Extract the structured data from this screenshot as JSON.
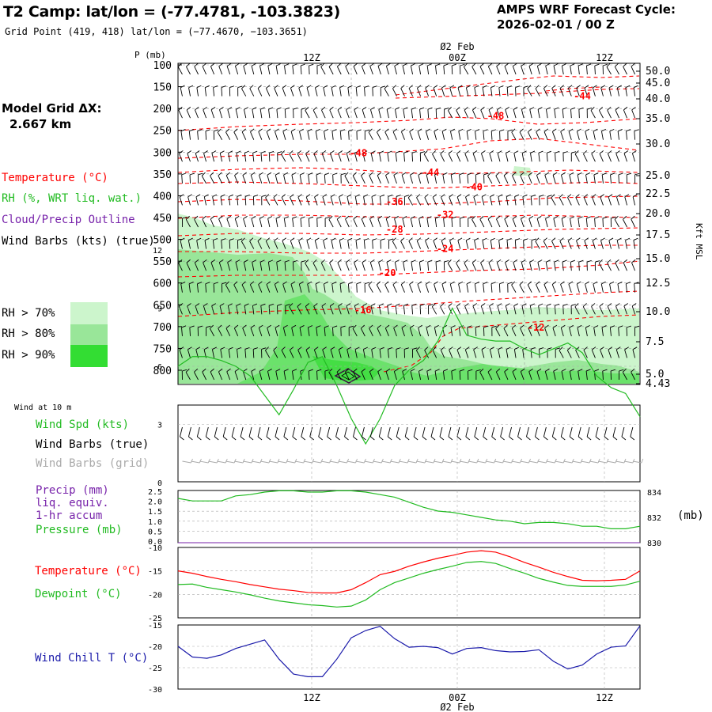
{
  "header": {
    "title": "T2 Camp:  lat/lon = (-77.4781, -103.3823)",
    "grid_point": "Grid Point (419, 418) lat/lon = (−77.4670, −103.3651)",
    "cycle_label": "AMPS WRF Forecast Cycle:",
    "cycle_time": "2026-02-01 / 00  Z"
  },
  "legend": {
    "grid_label": "Model Grid ΔX:",
    "grid_value": "2.667 km",
    "temperature": "Temperature (°C)",
    "rh": "RH (%, WRT liq. wat.)",
    "cloud": "Cloud/Precip Outline",
    "wind_barbs": "Wind Barbs (kts) (true)",
    "rh70": "RH > 70%",
    "rh80": "RH > 80%",
    "rh90": "RH > 90%",
    "wind10m": "Wind at 10 m",
    "wind_spd": "Wind Spd (kts)",
    "wind_barbs_true": "Wind Barbs (true)",
    "wind_barbs_grid": "Wind Barbs (grid)",
    "precip1": "Precip (mm)",
    "precip2": "liq. equiv.",
    "precip3": "1-hr accum",
    "pressure": "Pressure (mb)",
    "temp_panel": "Temperature (°C)",
    "dewpoint": "Dewpoint (°C)",
    "windchill": "Wind Chill T (°C)",
    "mb_unit": "(mb)",
    "kft_label": "Kft MSL",
    "p_label": "P (mb)"
  },
  "colors": {
    "temp": "#ff0000",
    "rh": "#22bb22",
    "cloud": "#7722aa",
    "windchill": "#1a1aaa",
    "grid_barb": "#aaaaaa",
    "rh70": "#ccf5cc",
    "rh80": "#99e699",
    "rh90": "#33dd33"
  },
  "axis": {
    "time_top": [
      "12Z",
      "00Z",
      "12Z"
    ],
    "date_top": "Ø2 Feb",
    "time_bottom": [
      "12Z",
      "00Z",
      "12Z"
    ],
    "date_bottom": "Ø2 Feb"
  },
  "chart_data": [
    {
      "type": "line",
      "title": "Cross-section: temperature contours, RH shading, wind barbs",
      "ylabel": "P (mb)",
      "pressure_ticks": [
        100,
        150,
        200,
        250,
        300,
        350,
        400,
        450,
        500,
        550,
        600,
        650,
        700,
        750,
        800
      ],
      "height_ticks_kft": [
        "50.0",
        "45.0",
        "40.0",
        "35.0",
        "30.0",
        "25.0",
        "22.5",
        "20.0",
        "17.5",
        "15.0",
        "12.5",
        "10.0",
        "7.5",
        "5.0",
        "4.43"
      ],
      "temp_contour_labels": [
        {
          "label": "-44",
          "hour": 28,
          "p": 170
        },
        {
          "label": "-48",
          "hour": 22,
          "p": 215
        },
        {
          "label": "-48",
          "hour": 12.5,
          "p": 300
        },
        {
          "label": "-44",
          "hour": 17.5,
          "p": 345
        },
        {
          "label": "-40",
          "hour": 20.5,
          "p": 378
        },
        {
          "label": "-36",
          "hour": 15,
          "p": 412
        },
        {
          "label": "-32",
          "hour": 18.5,
          "p": 442
        },
        {
          "label": "-28",
          "hour": 15,
          "p": 475
        },
        {
          "label": "-24",
          "hour": 18.5,
          "p": 520
        },
        {
          "label": "-20",
          "hour": 14.5,
          "p": 575
        },
        {
          "label": "-16",
          "hour": 12.8,
          "p": 660
        },
        {
          "label": "-12",
          "hour": 24.8,
          "p": 700
        }
      ]
    },
    {
      "type": "line",
      "title": "Wind at 10 m",
      "ylim": [
        0,
        12
      ],
      "yticks": [
        "12",
        "9",
        "6",
        "3",
        "0"
      ],
      "hours": [
        0,
        1,
        2,
        3,
        4,
        5,
        6,
        7,
        8,
        9,
        10,
        11,
        12,
        13,
        14,
        15,
        16,
        17,
        18,
        19,
        20,
        21,
        22,
        23,
        24,
        25,
        26,
        27,
        28,
        29,
        30,
        31,
        32
      ],
      "wind_speed_kts": [
        6.0,
        6.5,
        6.5,
        6.3,
        6.0,
        5.5,
        4.5,
        3.5,
        4.8,
        6.2,
        6.5,
        5.0,
        3.3,
        2.0,
        3.3,
        5.0,
        5.8,
        6.3,
        7.3,
        9.0,
        7.6,
        7.4,
        7.3,
        7.3,
        6.9,
        6.6,
        6.9,
        7.2,
        6.7,
        5.5,
        4.9,
        4.6,
        3.4
      ]
    },
    {
      "type": "line",
      "title": "Precip (mm) / Pressure (mb)",
      "precip_ticks": [
        "2.5",
        "2.0",
        "1.5",
        "1.0",
        "0.5",
        "0.0"
      ],
      "pressure_ticks": [
        "834",
        "832",
        "830"
      ],
      "hours": [
        0,
        1,
        2,
        3,
        4,
        5,
        6,
        7,
        8,
        9,
        10,
        11,
        12,
        13,
        14,
        15,
        16,
        17,
        18,
        19,
        20,
        21,
        22,
        23,
        24,
        25,
        26,
        27,
        28,
        29,
        30,
        31,
        32
      ],
      "pressure_mb": [
        833.5,
        833.3,
        833.3,
        833.3,
        833.7,
        833.8,
        834.0,
        834.1,
        834.1,
        834.0,
        834.0,
        834.1,
        834.1,
        834.0,
        833.8,
        833.6,
        833.2,
        832.8,
        832.5,
        832.4,
        832.2,
        832.0,
        831.8,
        831.7,
        831.5,
        831.6,
        831.6,
        831.5,
        831.3,
        831.3,
        831.1,
        831.1,
        831.3
      ],
      "precip_mm": [
        0,
        0,
        0,
        0,
        0,
        0,
        0,
        0,
        0,
        0,
        0,
        0,
        0,
        0,
        0,
        0,
        0,
        0,
        0,
        0,
        0,
        0,
        0,
        0,
        0,
        0,
        0,
        0,
        0,
        0,
        0,
        0,
        0
      ]
    },
    {
      "type": "line",
      "title": "Temperature / Dewpoint (°C)",
      "ylim": [
        -25,
        -10
      ],
      "yticks": [
        "-10",
        "-15",
        "-20",
        "-25"
      ],
      "hours": [
        0,
        1,
        2,
        3,
        4,
        5,
        6,
        7,
        8,
        9,
        10,
        11,
        12,
        13,
        14,
        15,
        16,
        17,
        18,
        19,
        20,
        21,
        22,
        23,
        24,
        25,
        26,
        27,
        28,
        29,
        30,
        31,
        32
      ],
      "series": [
        {
          "name": "Temperature",
          "values": [
            -15.0,
            -15.5,
            -16.2,
            -16.8,
            -17.3,
            -17.9,
            -18.4,
            -18.9,
            -19.2,
            -19.6,
            -19.7,
            -19.7,
            -19.0,
            -17.5,
            -15.8,
            -15.1,
            -14.0,
            -13.1,
            -12.3,
            -11.7,
            -11.0,
            -10.7,
            -11.0,
            -12.0,
            -13.2,
            -14.2,
            -15.3,
            -16.2,
            -17.0,
            -17.1,
            -17.0,
            -16.8,
            -15.0
          ]
        },
        {
          "name": "Dewpoint",
          "values": [
            -17.9,
            -17.8,
            -18.5,
            -19.0,
            -19.5,
            -20.1,
            -20.8,
            -21.4,
            -21.8,
            -22.2,
            -22.4,
            -22.7,
            -22.5,
            -21.2,
            -19.0,
            -17.5,
            -16.5,
            -15.5,
            -14.7,
            -14.0,
            -13.2,
            -13.0,
            -13.4,
            -14.5,
            -15.5,
            -16.6,
            -17.4,
            -18.1,
            -18.3,
            -18.3,
            -18.3,
            -18.0,
            -17.2
          ]
        }
      ]
    },
    {
      "type": "line",
      "title": "Wind Chill T (°C)",
      "ylim": [
        -30,
        -15
      ],
      "yticks": [
        "-15",
        "-20",
        "-25",
        "-30"
      ],
      "hours": [
        0,
        1,
        2,
        3,
        4,
        5,
        6,
        7,
        8,
        9,
        10,
        11,
        12,
        13,
        14,
        15,
        16,
        17,
        18,
        19,
        20,
        21,
        22,
        23,
        24,
        25,
        26,
        27,
        28,
        29,
        30,
        31,
        32
      ],
      "wind_chill_c": [
        -20.0,
        -22.5,
        -22.8,
        -22.0,
        -20.5,
        -19.5,
        -18.5,
        -23.0,
        -26.5,
        -27.1,
        -27.1,
        -23.0,
        -18.0,
        -16.3,
        -15.3,
        -18.2,
        -20.2,
        -20.0,
        -20.3,
        -21.8,
        -20.5,
        -20.3,
        -21.0,
        -21.3,
        -21.2,
        -20.8,
        -23.5,
        -25.3,
        -24.4,
        -21.8,
        -20.2,
        -19.9,
        -15.2
      ]
    }
  ]
}
